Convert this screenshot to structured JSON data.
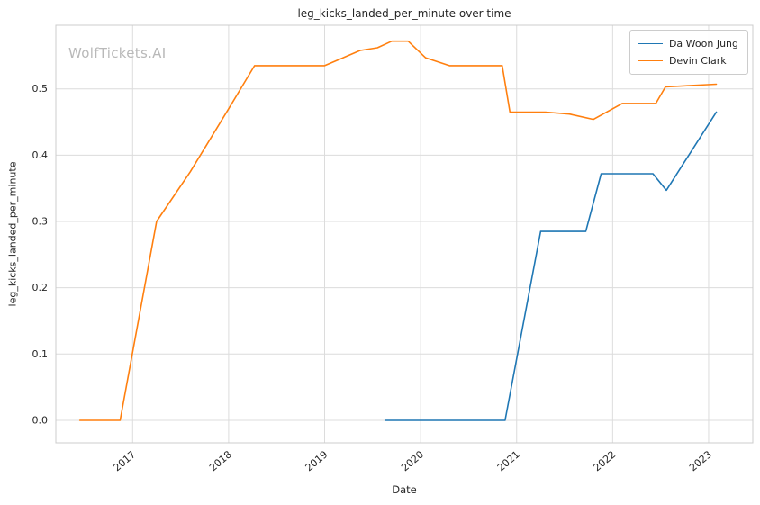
{
  "watermark": "WolfTickets.AI",
  "chart_data": {
    "type": "line",
    "title": "leg_kicks_landed_per_minute over time",
    "xlabel": "Date",
    "ylabel": "leg_kicks_landed_per_minute",
    "x_ticks": [
      2017,
      2018,
      2019,
      2020,
      2021,
      2022,
      2023
    ],
    "y_ticks": [
      0.0,
      0.1,
      0.2,
      0.3,
      0.4,
      0.5
    ],
    "xlim": [
      2016.2,
      2023.46
    ],
    "ylim": [
      -0.034,
      0.596
    ],
    "grid": true,
    "legend_position": "upper right",
    "colors": {
      "grid": "#dcdcdc",
      "spine": "#cccccc",
      "text": "#262626",
      "watermark": "#b9b9b9",
      "background": "#ffffff"
    },
    "series": [
      {
        "name": "Da Woon Jung",
        "color": "#1f77b4",
        "points": [
          [
            2019.63,
            0.0
          ],
          [
            2020.88,
            0.0
          ],
          [
            2021.25,
            0.285
          ],
          [
            2021.72,
            0.285
          ],
          [
            2021.88,
            0.372
          ],
          [
            2022.42,
            0.372
          ],
          [
            2022.56,
            0.347
          ],
          [
            2023.08,
            0.465
          ]
        ]
      },
      {
        "name": "Devin Clark",
        "color": "#ff7f0e",
        "points": [
          [
            2016.45,
            0.0
          ],
          [
            2016.87,
            0.0
          ],
          [
            2017.25,
            0.3
          ],
          [
            2017.6,
            0.375
          ],
          [
            2018.0,
            0.47
          ],
          [
            2018.27,
            0.535
          ],
          [
            2019.0,
            0.535
          ],
          [
            2019.37,
            0.558
          ],
          [
            2019.55,
            0.562
          ],
          [
            2019.7,
            0.572
          ],
          [
            2019.87,
            0.572
          ],
          [
            2020.05,
            0.547
          ],
          [
            2020.3,
            0.535
          ],
          [
            2020.85,
            0.535
          ],
          [
            2020.93,
            0.465
          ],
          [
            2021.3,
            0.465
          ],
          [
            2021.55,
            0.462
          ],
          [
            2021.8,
            0.454
          ],
          [
            2022.1,
            0.478
          ],
          [
            2022.45,
            0.478
          ],
          [
            2022.55,
            0.503
          ],
          [
            2022.8,
            0.505
          ],
          [
            2023.08,
            0.507
          ]
        ]
      }
    ]
  }
}
